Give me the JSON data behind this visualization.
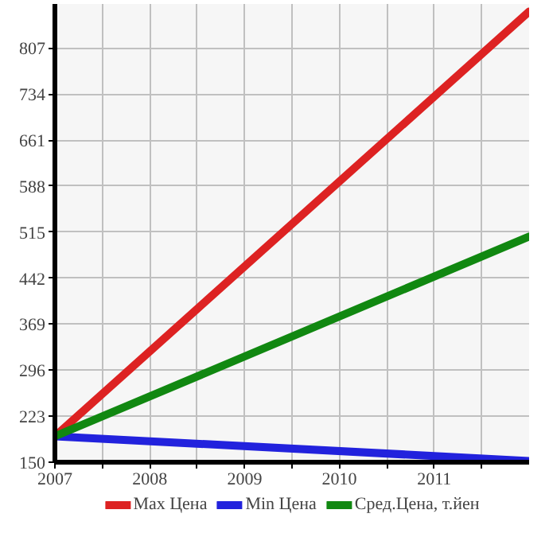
{
  "chart_data": {
    "type": "line",
    "x": [
      2007,
      2012
    ],
    "series": [
      {
        "name": "Max Цена",
        "color": "#dd2222",
        "values": [
          191,
          865
        ]
      },
      {
        "name": "Min Цена",
        "color": "#2222dd",
        "values": [
          191,
          152
        ]
      },
      {
        "name": "Сред.Цена, т.йен",
        "color": "#118811",
        "values": [
          191,
          508
        ]
      }
    ],
    "xlim": [
      2007,
      2012
    ],
    "ylim": [
      150,
      877
    ],
    "xticks": [
      2007,
      {
        "value": 2007.5,
        "label": null
      },
      2008,
      {
        "value": 2008.5,
        "label": null
      },
      2009,
      {
        "value": 2009.5,
        "label": null
      },
      2010,
      {
        "value": 2010.5,
        "label": null
      },
      2011,
      {
        "value": 2011.5,
        "label": null
      }
    ],
    "yticks": [
      150,
      223,
      296,
      369,
      442,
      515,
      588,
      661,
      734,
      807
    ],
    "grid": true,
    "legend": "bottom",
    "marker": "none",
    "line_style": "solid"
  }
}
